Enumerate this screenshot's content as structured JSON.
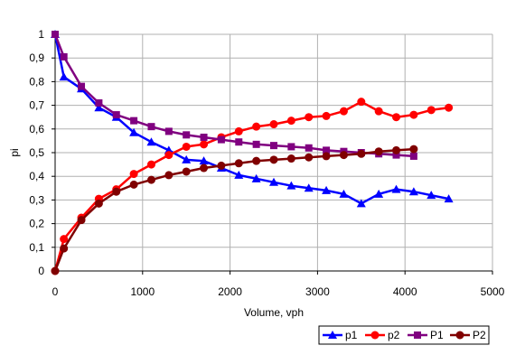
{
  "chart_data": {
    "type": "line",
    "title": "",
    "xlabel": "Volume, vph",
    "ylabel": "pi",
    "xlim": [
      0,
      5000
    ],
    "ylim": [
      0,
      1
    ],
    "x_ticks": [
      0,
      1000,
      2000,
      3000,
      4000,
      5000
    ],
    "y_ticks": [
      0,
      0.1,
      0.2,
      0.3,
      0.4,
      0.5,
      0.6,
      0.7,
      0.8,
      0.9,
      1
    ],
    "x_tick_labels": [
      "0",
      "1000",
      "2000",
      "3000",
      "4000",
      "5000"
    ],
    "y_tick_labels": [
      "0",
      "0,1",
      "0,2",
      "0,3",
      "0,4",
      "0,5",
      "0,6",
      "0,7",
      "0,8",
      "0,9",
      "1"
    ],
    "grid": "major, both axes",
    "legend_position": "bottom-right",
    "series": [
      {
        "name": "p1",
        "color": "#0000FF",
        "marker": "triangle",
        "x": [
          0,
          100,
          300,
          500,
          700,
          900,
          1100,
          1300,
          1500,
          1700,
          1900,
          2100,
          2300,
          2500,
          2700,
          2900,
          3100,
          3300,
          3500,
          3700,
          3900,
          4100,
          4300,
          4500
        ],
        "y": [
          1.0,
          0.82,
          0.77,
          0.69,
          0.65,
          0.585,
          0.545,
          0.51,
          0.47,
          0.465,
          0.435,
          0.405,
          0.39,
          0.375,
          0.36,
          0.35,
          0.34,
          0.325,
          0.285,
          0.325,
          0.345,
          0.335,
          0.32,
          0.305
        ]
      },
      {
        "name": "p2",
        "color": "#FF0000",
        "marker": "circle",
        "x": [
          0,
          100,
          300,
          500,
          700,
          900,
          1100,
          1300,
          1500,
          1700,
          1900,
          2100,
          2300,
          2500,
          2700,
          2900,
          3100,
          3300,
          3500,
          3700,
          3900,
          4100,
          4300,
          4500
        ],
        "y": [
          0.0,
          0.135,
          0.225,
          0.305,
          0.345,
          0.41,
          0.45,
          0.49,
          0.525,
          0.535,
          0.565,
          0.59,
          0.61,
          0.62,
          0.635,
          0.65,
          0.655,
          0.675,
          0.715,
          0.675,
          0.65,
          0.66,
          0.68,
          0.69
        ]
      },
      {
        "name": "P1",
        "color": "#800080",
        "marker": "square",
        "x": [
          0,
          100,
          300,
          500,
          700,
          900,
          1100,
          1300,
          1500,
          1700,
          1900,
          2100,
          2300,
          2500,
          2700,
          2900,
          3100,
          3300,
          3500,
          3700,
          3900,
          4100
        ],
        "y": [
          1.0,
          0.905,
          0.78,
          0.71,
          0.66,
          0.635,
          0.61,
          0.59,
          0.575,
          0.565,
          0.555,
          0.545,
          0.535,
          0.53,
          0.525,
          0.52,
          0.51,
          0.505,
          0.5,
          0.495,
          0.49,
          0.485
        ]
      },
      {
        "name": "P2",
        "color": "#800000",
        "marker": "circle",
        "x": [
          0,
          100,
          300,
          500,
          700,
          900,
          1100,
          1300,
          1500,
          1700,
          1900,
          2100,
          2300,
          2500,
          2700,
          2900,
          3100,
          3300,
          3500,
          3700,
          3900,
          4100
        ],
        "y": [
          0.0,
          0.095,
          0.215,
          0.285,
          0.335,
          0.365,
          0.385,
          0.405,
          0.42,
          0.435,
          0.445,
          0.455,
          0.465,
          0.47,
          0.475,
          0.48,
          0.485,
          0.49,
          0.495,
          0.505,
          0.51,
          0.515
        ]
      }
    ]
  }
}
